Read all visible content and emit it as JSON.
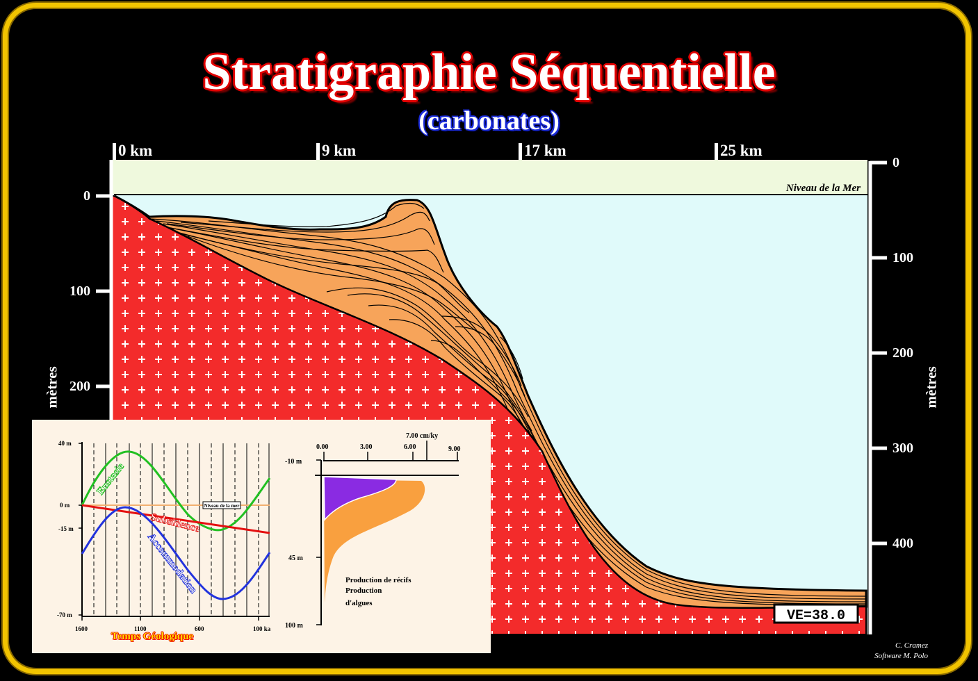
{
  "title": "Stratigraphie Séquentielle",
  "subtitle": "(carbonates)",
  "distance_axis": [
    "0 km",
    "9 km",
    "17 km",
    "25 km"
  ],
  "left_axis": {
    "label": "mètres",
    "ticks": [
      "0",
      "100",
      "200"
    ]
  },
  "right_axis": {
    "label": "mètres",
    "ticks": [
      "0",
      "100",
      "200",
      "300",
      "400"
    ]
  },
  "sea_level_label": "Niveau de la Mer",
  "ve_label": "VE=38.0",
  "credit": {
    "line1": "C. Cramez",
    "line2": "Software M. Polo"
  },
  "colors": {
    "frame": "#f2c400",
    "basement": "#f32b2b",
    "sediment": "#f7a45a",
    "water": "#e0fafa",
    "sky": "#eff9dd"
  },
  "inset_left": {
    "y_ticks": [
      "40 m",
      "0 m",
      "-15 m",
      "-70 m"
    ],
    "x_ticks": [
      "1600",
      "1100",
      "600",
      "100 ka"
    ],
    "x_title": "Temps Géologique",
    "sea_level_box": "Niveau de la mer",
    "curves": {
      "eustasy": "Eustasie",
      "subsidence": "Subsidence",
      "accommodation": "Accommodation"
    },
    "curve_colors": {
      "eustasy": "#22c022",
      "subsidence": "#e41010",
      "accommodation": "#2233dd"
    }
  },
  "inset_right": {
    "x_unit": "7.00 cm/ky",
    "x_ticks": [
      "0.00",
      "3.00",
      "6.00",
      "9.00"
    ],
    "y_ticks": [
      "-10 m",
      "45 m",
      "100 m"
    ],
    "labels": {
      "reef": "Production de récifs",
      "algae_1": "Production",
      "algae_2": "d'algues"
    },
    "fill_colors": {
      "reef": "#8a2be2",
      "algae": "#f9a03f"
    }
  }
}
